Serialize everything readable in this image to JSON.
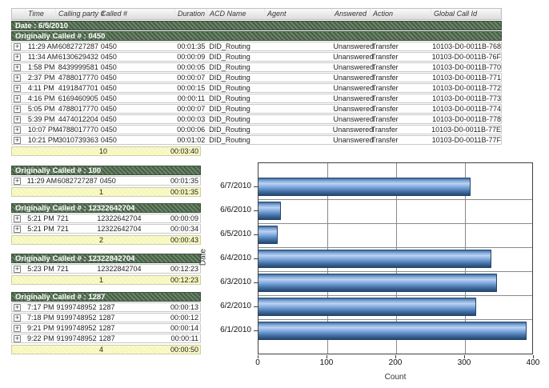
{
  "columns": {
    "time": "Time",
    "calling": "Calling party #",
    "called": "Called #",
    "duration": "Duration",
    "acd": "ACD Name",
    "agent": "Agent",
    "answered": "Answered",
    "action": "Action",
    "gcid": "Global Call Id"
  },
  "top_table": {
    "date_band": "Date : 6/5/2010",
    "group_band": "Originally Called # : 0450",
    "rows": [
      {
        "time": "11:29 AM",
        "calling": "6082727287",
        "called": "0450",
        "duration": "00:01:35",
        "acd": "DID_Routing",
        "agent": "",
        "answered": "Unanswered",
        "action": "Transfer",
        "gcid": "10103-D0-0011B-768"
      },
      {
        "time": "11:34 AM",
        "calling": "6130629432",
        "called": "0450",
        "duration": "00:00:09",
        "acd": "DID_Routing",
        "agent": "",
        "answered": "Unanswered",
        "action": "Transfer",
        "gcid": "10103-D0-0011B-76F"
      },
      {
        "time": "1:58 PM",
        "calling": "8439999581",
        "called": "0450",
        "duration": "00:00:05",
        "acd": "DID_Routing",
        "agent": "",
        "answered": "Unanswered",
        "action": "Transfer",
        "gcid": "10103-D0-0011B-770"
      },
      {
        "time": "2:37 PM",
        "calling": "4788017770",
        "called": "0450",
        "duration": "00:00:07",
        "acd": "DID_Routing",
        "agent": "",
        "answered": "Unanswered",
        "action": "Transfer",
        "gcid": "10103-D0-0011B-771"
      },
      {
        "time": "4:11 PM",
        "calling": "4191847701",
        "called": "0450",
        "duration": "00:00:15",
        "acd": "DID_Routing",
        "agent": "",
        "answered": "Unanswered",
        "action": "Transfer",
        "gcid": "10103-D0-0011B-772"
      },
      {
        "time": "4:16 PM",
        "calling": "6169460905",
        "called": "0450",
        "duration": "00:00:11",
        "acd": "DID_Routing",
        "agent": "",
        "answered": "Unanswered",
        "action": "Transfer",
        "gcid": "10103-D0-0011B-773"
      },
      {
        "time": "5:05 PM",
        "calling": "4788017770",
        "called": "0450",
        "duration": "00:00:07",
        "acd": "DID_Routing",
        "agent": "",
        "answered": "Unanswered",
        "action": "Transfer",
        "gcid": "10103-D0-0011B-774"
      },
      {
        "time": "5:39 PM",
        "calling": "4474012204",
        "called": "0450",
        "duration": "00:00:03",
        "acd": "DID_Routing",
        "agent": "",
        "answered": "Unanswered",
        "action": "Transfer",
        "gcid": "10103-D0-0011B-778"
      },
      {
        "time": "10:07 PM",
        "calling": "4788017770",
        "called": "0450",
        "duration": "00:00:06",
        "acd": "DID_Routing",
        "agent": "",
        "answered": "Unanswered",
        "action": "Transfer",
        "gcid": "10103-D0-0011B-77E"
      },
      {
        "time": "10:21 PM",
        "calling": "3010739363",
        "called": "0450",
        "duration": "00:01:02",
        "acd": "DID_Routing",
        "agent": "",
        "answered": "Unanswered",
        "action": "Transfer",
        "gcid": "10103-D0-0011B-77F"
      }
    ],
    "summary": {
      "count": "10",
      "duration": "00:03:40"
    }
  },
  "groups": [
    {
      "header": "Originally Called # : 100",
      "rows": [
        {
          "time": "11:29 AM",
          "calling": "6082727287",
          "called": "0450",
          "duration": "00:01:35"
        }
      ],
      "summary": {
        "count": "1",
        "duration": "00:01:35"
      }
    },
    {
      "header": "Originally Called # : 12322642704",
      "rows": [
        {
          "time": "5:21 PM",
          "calling": "721",
          "called": "12322642704",
          "duration": "00:00:09"
        },
        {
          "time": "5:21 PM",
          "calling": "721",
          "called": "12322642704",
          "duration": "00:00:34"
        }
      ],
      "summary": {
        "count": "2",
        "duration": "00:00:43"
      }
    },
    {
      "header": "Originally Called # : 12322842704",
      "rows": [
        {
          "time": "5:23 PM",
          "calling": "721",
          "called": "12322842704",
          "duration": "00:12:23"
        }
      ],
      "summary": {
        "count": "1",
        "duration": "00:12:23"
      }
    },
    {
      "header": "Originally Called # : 1287",
      "rows": [
        {
          "time": "7:17 PM",
          "calling": "9199748952",
          "called": "1287",
          "duration": "00:00:13"
        },
        {
          "time": "7:18 PM",
          "calling": "9199748952",
          "called": "1287",
          "duration": "00:00:12"
        },
        {
          "time": "9:21 PM",
          "calling": "9199748952",
          "called": "1287",
          "duration": "00:00:14"
        },
        {
          "time": "9:22 PM",
          "calling": "9199748952",
          "called": "1287",
          "duration": "00:00:11"
        }
      ],
      "summary": {
        "count": "4",
        "duration": "00:00:50"
      }
    }
  ],
  "chart_data": {
    "type": "bar",
    "orientation": "horizontal",
    "categories": [
      "6/7/2010",
      "6/6/2010",
      "6/5/2010",
      "6/4/2010",
      "6/3/2010",
      "6/2/2010",
      "6/1/2010"
    ],
    "values": [
      310,
      33,
      28,
      340,
      348,
      318,
      392
    ],
    "title": "",
    "xlabel": "Count",
    "ylabel": "Date",
    "xlim": [
      0,
      400
    ],
    "xticks": [
      "0",
      "100",
      "200",
      "300",
      "400"
    ],
    "grid": true,
    "legend": "none",
    "bar_color": "#5b8fc9"
  },
  "colors": {
    "band_green_dark": "#465f44",
    "band_green_light": "#6c856a",
    "summary_yellow": "#f8f8c4",
    "bar_blue_hi": "#b9d3f2",
    "bar_blue_lo": "#24466e"
  }
}
